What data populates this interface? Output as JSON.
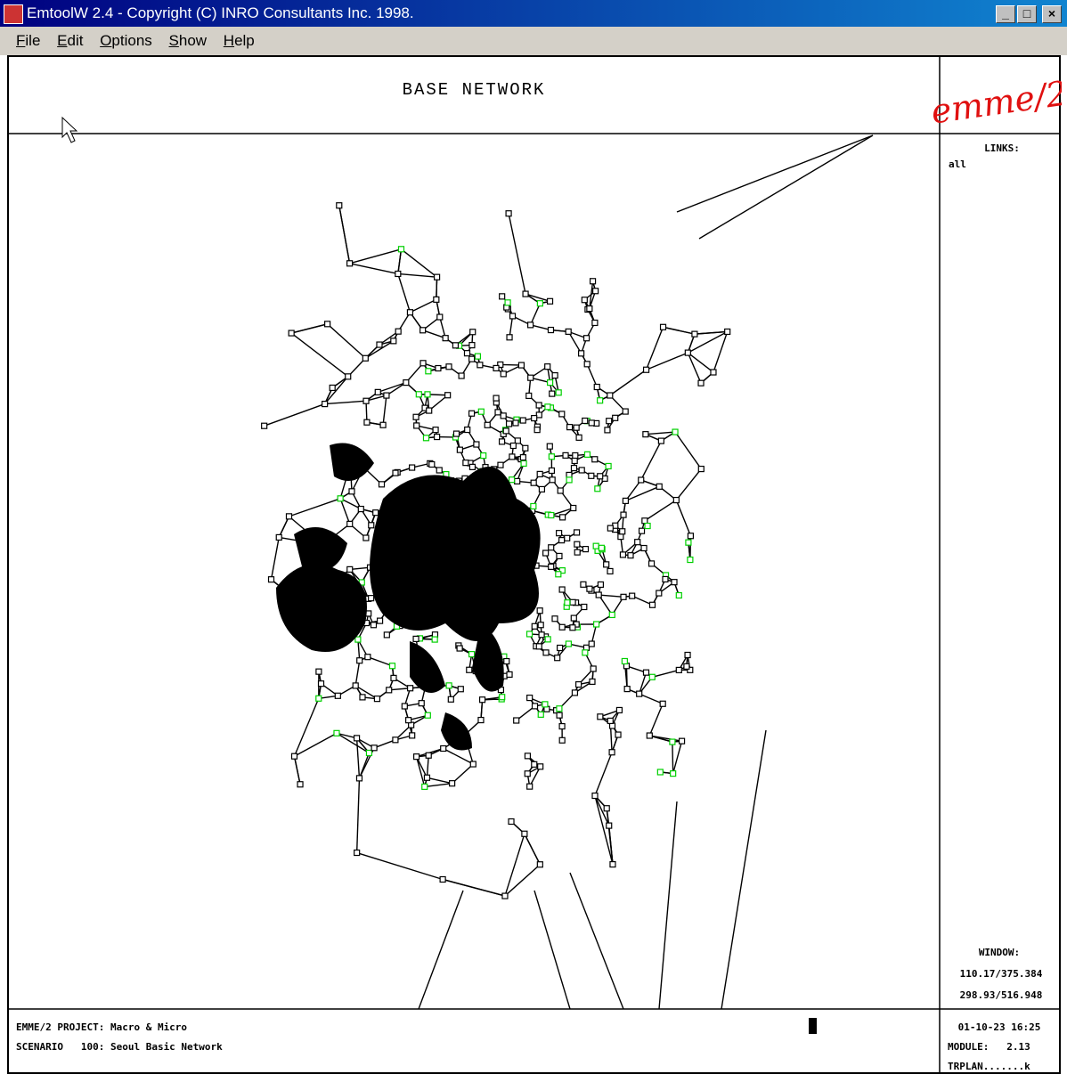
{
  "window": {
    "title": "EmtoolW 2.4 - Copyright (C) INRO Consultants Inc. 1998."
  },
  "menu": [
    "File",
    "Edit",
    "Options",
    "Show",
    "Help"
  ],
  "header": {
    "title": "BASE NETWORK",
    "logo": "emme/2"
  },
  "side_panel": {
    "links_label": "LINKS:",
    "links_value": "all",
    "window_label": "WINDOW:",
    "window_line1": "110.17/375.384",
    "window_line2": "298.93/516.948"
  },
  "footer": {
    "project": "EMME/2 PROJECT: Macro & Micro",
    "scenario": "SCENARIO   100: Seoul Basic Network",
    "datetime": "01-10-23 16:25",
    "module": "MODULE:   2.13",
    "user": "TRPLAN.......k"
  }
}
